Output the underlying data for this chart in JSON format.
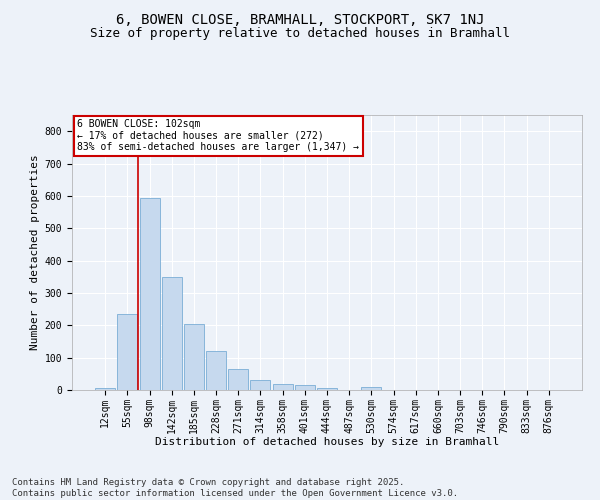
{
  "title": "6, BOWEN CLOSE, BRAMHALL, STOCKPORT, SK7 1NJ",
  "subtitle": "Size of property relative to detached houses in Bramhall",
  "xlabel": "Distribution of detached houses by size in Bramhall",
  "ylabel": "Number of detached properties",
  "categories": [
    "12sqm",
    "55sqm",
    "98sqm",
    "142sqm",
    "185sqm",
    "228sqm",
    "271sqm",
    "314sqm",
    "358sqm",
    "401sqm",
    "444sqm",
    "487sqm",
    "530sqm",
    "574sqm",
    "617sqm",
    "660sqm",
    "703sqm",
    "746sqm",
    "790sqm",
    "833sqm",
    "876sqm"
  ],
  "values": [
    5,
    235,
    595,
    350,
    205,
    120,
    65,
    30,
    20,
    15,
    5,
    0,
    10,
    0,
    0,
    0,
    0,
    0,
    0,
    0,
    0
  ],
  "bar_color": "#c6d9ee",
  "bar_edge_color": "#7aaed6",
  "vline_x": 1.5,
  "vline_color": "#cc0000",
  "annotation_text": "6 BOWEN CLOSE: 102sqm\n← 17% of detached houses are smaller (272)\n83% of semi-detached houses are larger (1,347) →",
  "annotation_box_color": "#ffffff",
  "annotation_box_edge": "#cc0000",
  "ylim": [
    0,
    850
  ],
  "yticks": [
    0,
    100,
    200,
    300,
    400,
    500,
    600,
    700,
    800
  ],
  "background_color": "#edf2f9",
  "grid_color": "#ffffff",
  "title_fontsize": 10,
  "subtitle_fontsize": 9,
  "axis_label_fontsize": 8,
  "tick_fontsize": 7,
  "footer": "Contains HM Land Registry data © Crown copyright and database right 2025.\nContains public sector information licensed under the Open Government Licence v3.0.",
  "footer_fontsize": 6.5
}
